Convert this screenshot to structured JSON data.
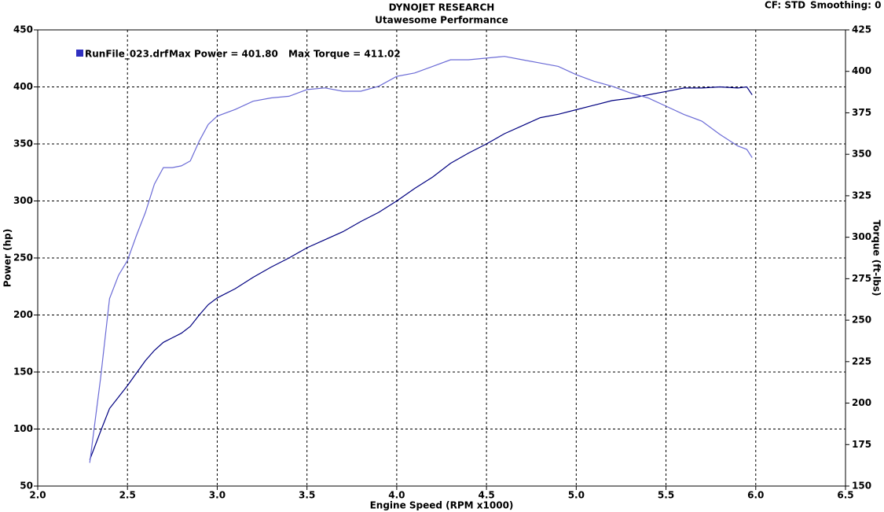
{
  "chart_data": {
    "type": "line",
    "title": "DYNOJET RESEARCH",
    "subtitle": "Utawesome Performance",
    "correction": "CF: STD",
    "smoothing": "Smoothing: 0",
    "legend_run": "RunFile_023.drf",
    "legend_max_power": "Max Power = 401.80",
    "legend_max_torque": "Max Torque = 411.02",
    "x_label": "Engine Speed (RPM x1000)",
    "y_label": "Power (hp)",
    "y2_label": "Torque (ft-lbs)",
    "x": [
      2.29,
      2.35,
      2.4,
      2.45,
      2.5,
      2.55,
      2.6,
      2.65,
      2.7,
      2.75,
      2.8,
      2.85,
      2.9,
      2.95,
      3.0,
      3.1,
      3.2,
      3.3,
      3.4,
      3.5,
      3.6,
      3.7,
      3.8,
      3.9,
      4.0,
      4.1,
      4.2,
      4.3,
      4.4,
      4.5,
      4.6,
      4.7,
      4.8,
      4.9,
      5.0,
      5.1,
      5.2,
      5.3,
      5.4,
      5.5,
      5.6,
      5.7,
      5.8,
      5.9,
      5.95,
      5.98
    ],
    "series": [
      {
        "color": "#000080",
        "axis": "y",
        "values": [
          73,
          98,
          118,
          128,
          138,
          149,
          160,
          169,
          176,
          180,
          184,
          190,
          200,
          209,
          215,
          223,
          233,
          242,
          250,
          259,
          266,
          273,
          282,
          290,
          300,
          311,
          321,
          333,
          342,
          350,
          359,
          366,
          373,
          376,
          380,
          384,
          388,
          390,
          393,
          396,
          399,
          399,
          400,
          399,
          400,
          393
        ]
      },
      {
        "color": "#6b6bd6",
        "axis": "y2",
        "values": [
          164,
          215,
          263,
          277,
          286,
          301,
          315,
          332,
          342,
          342,
          343,
          346,
          358,
          368,
          373,
          377,
          382,
          384,
          385,
          389,
          390,
          388,
          388,
          391,
          397,
          399,
          403,
          407,
          407,
          408,
          409,
          407,
          405,
          403,
          398,
          394,
          391,
          387,
          384,
          379,
          374,
          370,
          362,
          355,
          353,
          348
        ]
      }
    ],
    "xlim": [
      2.0,
      6.5
    ],
    "xticks": [
      {
        "value": 2,
        "label": "2.0"
      },
      2.5,
      {
        "value": 3,
        "label": "3.0"
      },
      3.5,
      {
        "value": 4,
        "label": "4.0"
      },
      4.5,
      {
        "value": 5,
        "label": "5.0"
      },
      5.5,
      {
        "value": 6,
        "label": "6.0"
      },
      6.5
    ],
    "ylim": [
      50,
      450
    ],
    "yticks": [
      50,
      100,
      150,
      200,
      250,
      300,
      350,
      400,
      450
    ],
    "y2lim": [
      150,
      425
    ],
    "y2ticks": [
      150,
      175,
      200,
      225,
      250,
      275,
      300,
      325,
      350,
      375,
      400,
      425
    ],
    "grid": true,
    "legend_color": "#3030c0"
  }
}
